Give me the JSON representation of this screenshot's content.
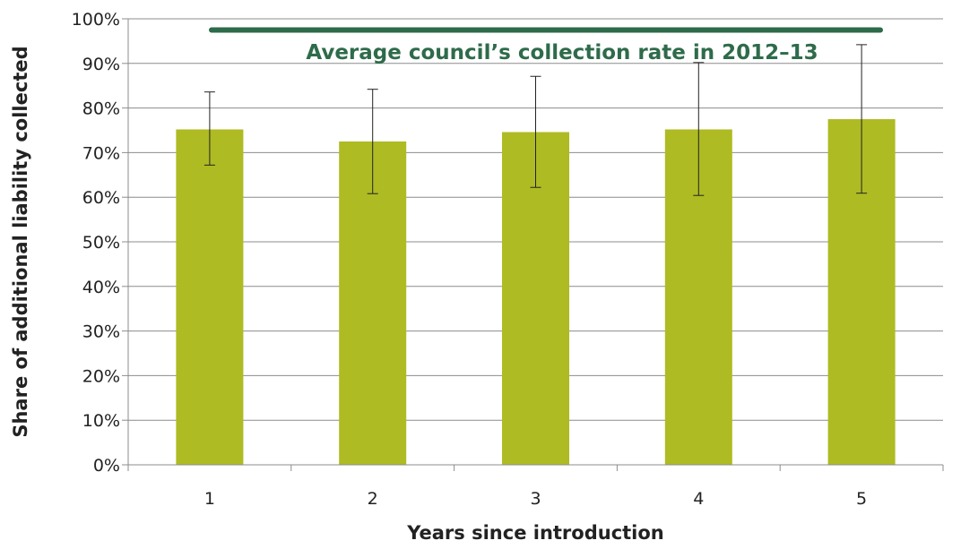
{
  "chart_data": {
    "type": "bar",
    "title": "",
    "xlabel": "Years since introduction",
    "ylabel": "Share of additional liability collected",
    "categories": [
      "1",
      "2",
      "3",
      "4",
      "5"
    ],
    "series": [
      {
        "values": [
          75.2,
          72.5,
          74.6,
          75.2,
          77.5
        ],
        "error_low": [
          67.2,
          60.8,
          62.2,
          60.4,
          60.9
        ],
        "error_high": [
          83.6,
          84.2,
          87.1,
          90.2,
          94.2
        ]
      }
    ],
    "ylim": [
      0,
      100
    ],
    "yticks": [
      0,
      10,
      20,
      30,
      40,
      50,
      60,
      70,
      80,
      90,
      100
    ],
    "ytick_labels": [
      "0%",
      "10%",
      "20%",
      "30%",
      "40%",
      "50%",
      "60%",
      "70%",
      "80%",
      "90%",
      "100%"
    ],
    "grid": true,
    "reference_line": {
      "value": 97.5,
      "label": "Average council’s collection rate in 2012–13"
    },
    "colors": {
      "bar": "#aebb23",
      "reference": "#2e6b4a",
      "grid": "#8c8c8c",
      "error_bar": "#222222"
    }
  }
}
